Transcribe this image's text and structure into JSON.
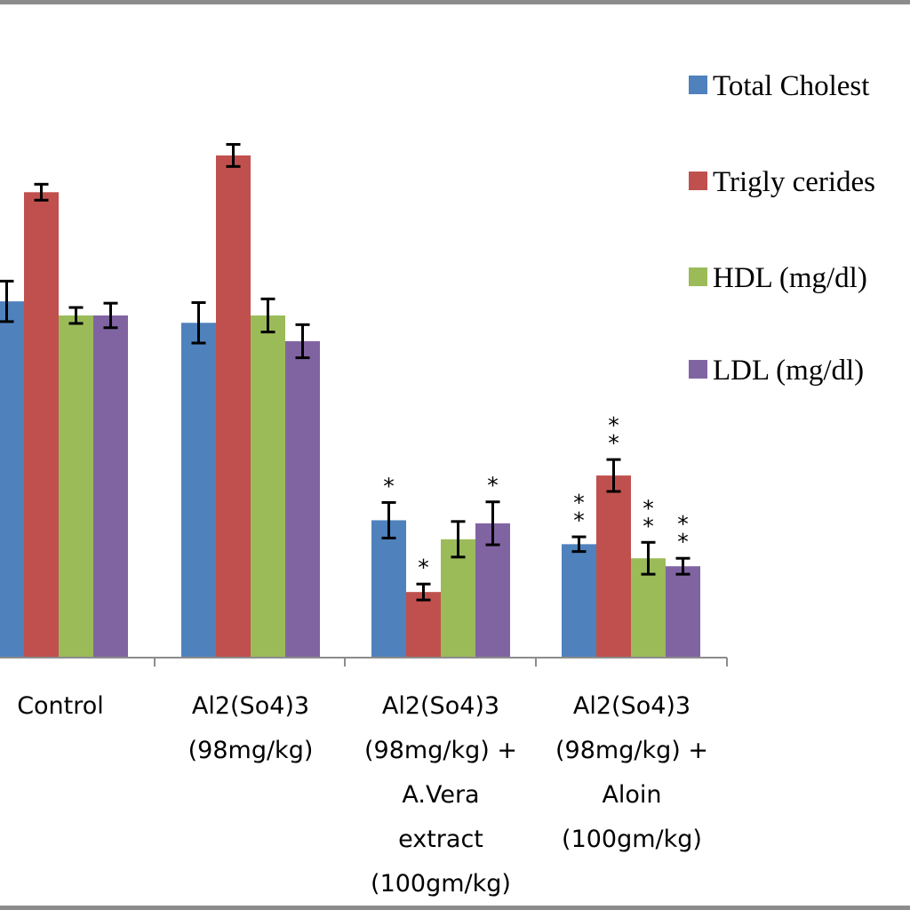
{
  "chart_data": {
    "type": "bar",
    "title": "",
    "xlabel": "",
    "ylabel": "",
    "ylim": [
      0,
      1
    ],
    "categories": [
      [
        "Control"
      ],
      [
        "Al2(So4)3",
        "(98mg/kg)"
      ],
      [
        "Al2(So4)3",
        "(98mg/kg) +",
        "A.Vera",
        "extract",
        "(100gm/kg)"
      ],
      [
        "Al2(So4)3",
        "(98mg/kg) +",
        "Aloin",
        "(100gm/kg)"
      ]
    ],
    "series": [
      {
        "name": "Total Cholest",
        "color": "#4f81bd",
        "values": [
          0.581,
          0.546,
          0.224,
          0.185
        ],
        "errors": [
          0.033,
          0.033,
          0.029,
          0.012
        ],
        "annotations": [
          "",
          "",
          "*",
          "**"
        ]
      },
      {
        "name": "Trigly cerides",
        "color": "#c0504d",
        "values": [
          0.759,
          0.819,
          0.107,
          0.297
        ],
        "errors": [
          0.013,
          0.018,
          0.013,
          0.026
        ],
        "annotations": [
          "",
          "",
          "*",
          "**"
        ]
      },
      {
        "name": "HDL (mg/dl)",
        "color": "#9bbb59",
        "values": [
          0.558,
          0.558,
          0.193,
          0.162
        ],
        "errors": [
          0.013,
          0.027,
          0.029,
          0.026
        ],
        "annotations": [
          "",
          "",
          "",
          "**"
        ]
      },
      {
        "name": "LDL (mg/dl)",
        "color": "#8064a2",
        "values": [
          0.558,
          0.516,
          0.219,
          0.149
        ],
        "errors": [
          0.02,
          0.027,
          0.035,
          0.013
        ],
        "annotations": [
          "",
          "",
          "*",
          "**"
        ]
      }
    ],
    "legend": "right",
    "grid": false
  }
}
